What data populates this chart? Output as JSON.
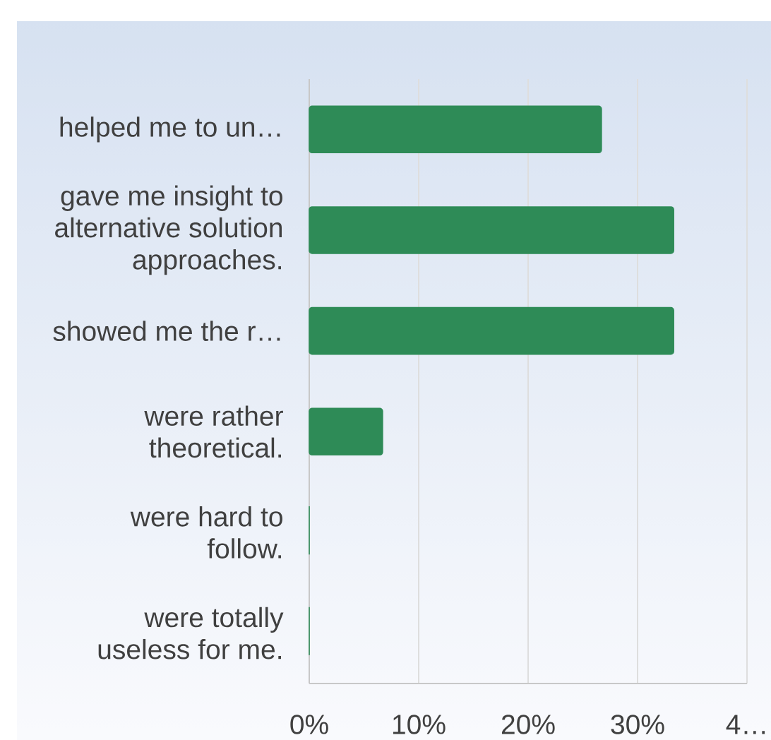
{
  "chart_data": {
    "type": "bar",
    "orientation": "horizontal",
    "categories": [
      "helped me to un…",
      "gave me insight to alternative solution approaches.",
      "showed me the r…",
      "were rather theoretical.",
      "were hard to follow.",
      "were totally useless for me."
    ],
    "values": [
      26.7,
      33.3,
      33.3,
      6.7,
      0,
      0
    ],
    "color": "#2e8b57",
    "xlim": [
      0,
      40
    ],
    "xticks": [
      {
        "value": 0,
        "label": "0%"
      },
      {
        "value": 10,
        "label": "10%"
      },
      {
        "value": 20,
        "label": "20%"
      },
      {
        "value": 30,
        "label": "30%"
      },
      {
        "value": 40,
        "label": "4…"
      }
    ],
    "grid": "x"
  }
}
